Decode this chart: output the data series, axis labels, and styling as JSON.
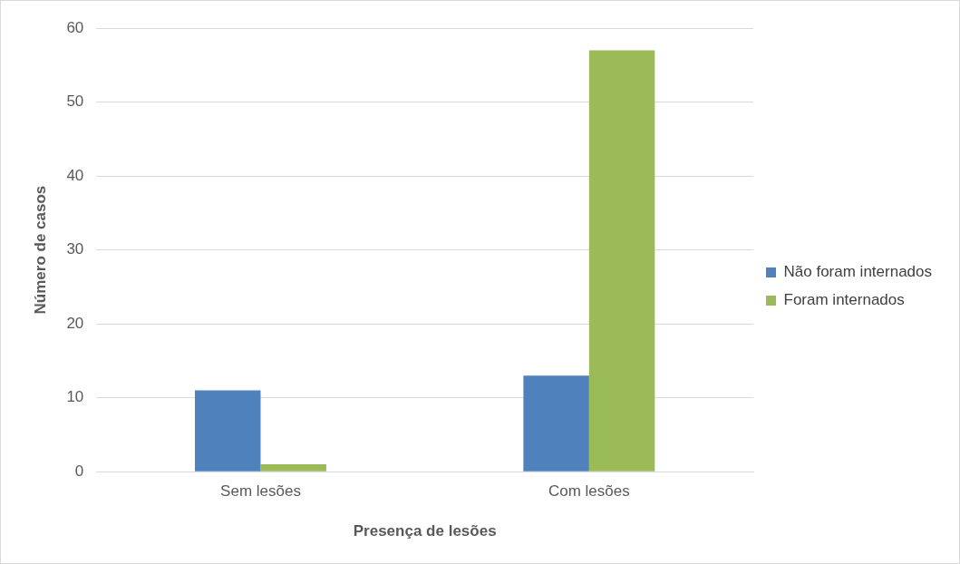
{
  "chart_data": {
    "type": "bar",
    "xlabel": "Presença de lesões",
    "ylabel": "Número de casos",
    "categories": [
      "Sem lesões",
      "Com lesões"
    ],
    "series": [
      {
        "name": "Não foram internados",
        "color": "#4f81bd",
        "values": [
          11,
          13
        ]
      },
      {
        "name": "Foram internados",
        "color": "#9bbb59",
        "values": [
          1,
          57
        ]
      }
    ],
    "ylim": [
      0,
      60
    ],
    "yticks": [
      0,
      10,
      20,
      30,
      40,
      50,
      60
    ],
    "grid": "y",
    "legend": "right"
  }
}
